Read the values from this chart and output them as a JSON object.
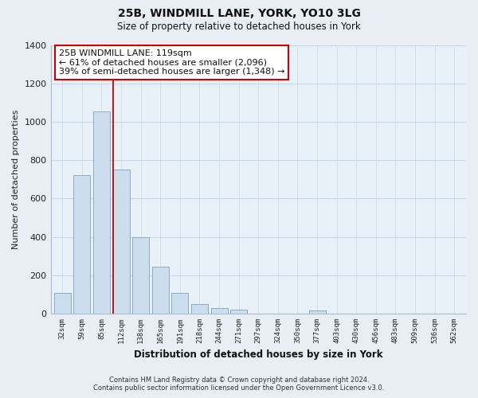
{
  "title": "25B, WINDMILL LANE, YORK, YO10 3LG",
  "subtitle": "Size of property relative to detached houses in York",
  "xlabel": "Distribution of detached houses by size in York",
  "ylabel": "Number of detached properties",
  "bar_labels": [
    "32sqm",
    "59sqm",
    "85sqm",
    "112sqm",
    "138sqm",
    "165sqm",
    "191sqm",
    "218sqm",
    "244sqm",
    "271sqm",
    "297sqm",
    "324sqm",
    "350sqm",
    "377sqm",
    "403sqm",
    "430sqm",
    "456sqm",
    "483sqm",
    "509sqm",
    "536sqm",
    "562sqm"
  ],
  "bar_values": [
    107,
    720,
    1053,
    750,
    400,
    245,
    110,
    48,
    28,
    22,
    0,
    0,
    0,
    15,
    0,
    0,
    0,
    0,
    0,
    0,
    0
  ],
  "bar_color": "#ccdded",
  "bar_edge_color": "#88aac8",
  "property_line_color": "#cc0000",
  "property_line_x": 2.57,
  "ylim": [
    0,
    1400
  ],
  "yticks": [
    0,
    200,
    400,
    600,
    800,
    1000,
    1200,
    1400
  ],
  "annotation_title": "25B WINDMILL LANE: 119sqm",
  "annotation_line1": "← 61% of detached houses are smaller (2,096)",
  "annotation_line2": "39% of semi-detached houses are larger (1,348) →",
  "annotation_box_color": "#ffffff",
  "annotation_box_edge": "#cc0000",
  "footer_line1": "Contains HM Land Registry data © Crown copyright and database right 2024.",
  "footer_line2": "Contains public sector information licensed under the Open Government Licence v3.0.",
  "background_color": "#e8eef4",
  "plot_bg_color": "#e8f0f8",
  "grid_color": "#c8d8e8",
  "spine_color": "#aabbcc"
}
